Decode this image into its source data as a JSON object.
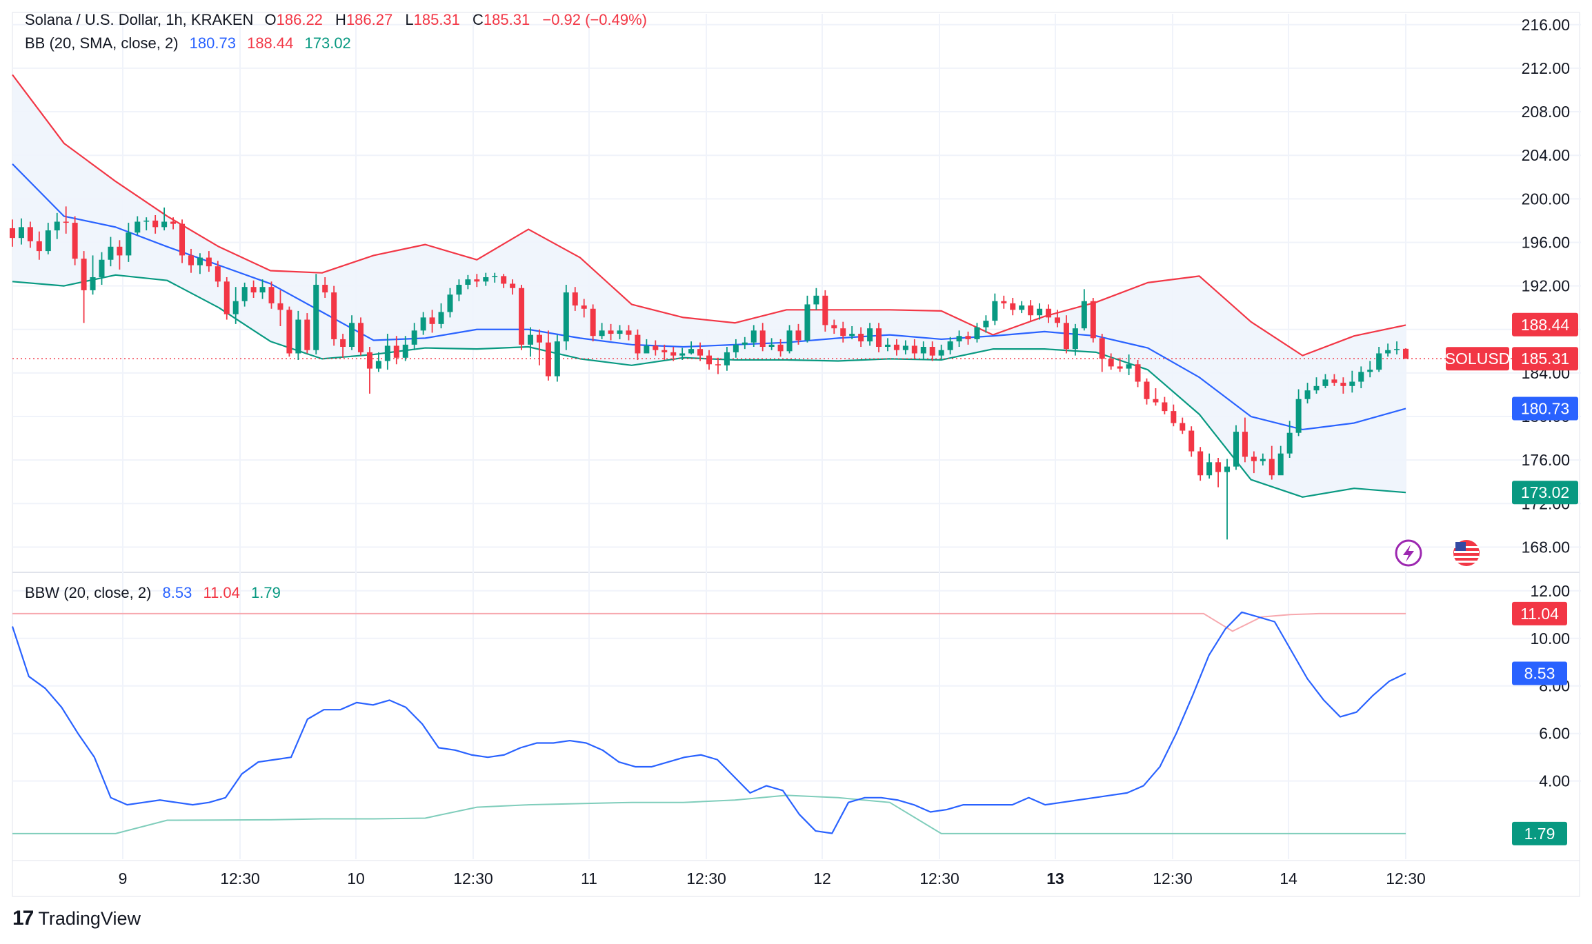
{
  "symbol": {
    "title": "Solana / U.S. Dollar, 1h, KRAKEN",
    "o_label": "O",
    "o": "186.22",
    "h_label": "H",
    "h": "186.27",
    "l_label": "L",
    "l": "185.31",
    "c_label": "C",
    "c": "185.31",
    "change": "−0.92 (−0.49%)",
    "ticker": "SOLUSD"
  },
  "bb_legend": {
    "title": "BB (20, SMA, close, 2)",
    "basis": "180.73",
    "upper": "188.44",
    "lower": "173.02"
  },
  "bbw_legend": {
    "title": "BBW (20, close, 2)",
    "value": "8.53",
    "highest": "11.04",
    "lowest": "1.79"
  },
  "footer": {
    "brand": "TradingView",
    "logo": "17"
  },
  "colors": {
    "up": "#089981",
    "down": "#F23645",
    "basis": "#2962FF",
    "upper": "#F23645",
    "lower": "#089981",
    "band_fill": "#EEF4FC",
    "grid": "#F0F3FA"
  },
  "icons": [
    "lightning-icon",
    "us-flag-icon"
  ],
  "chart_data": [
    {
      "type": "candlestick",
      "title": "Solana / U.S. Dollar, 1h, KRAKEN",
      "y_ticks": [
        168,
        172,
        176,
        180,
        184,
        188,
        192,
        196,
        200,
        204,
        208,
        212,
        216
      ],
      "ylim": [
        166,
        217
      ],
      "x_ticks": [
        "9",
        "12:30",
        "10",
        "12:30",
        "11",
        "12:30",
        "12",
        "12:30",
        "13",
        "12:30",
        "14",
        "12:30"
      ],
      "price_labels": {
        "upper": "188.44",
        "last": "185.31",
        "basis": "180.73",
        "lower": "173.02"
      },
      "candles": [
        [
          197.3,
          196.4,
          198.1,
          195.6
        ],
        [
          196.4,
          197.4,
          198.2,
          195.8
        ],
        [
          197.4,
          196.1,
          197.9,
          195.5
        ],
        [
          196.1,
          195.2,
          197.0,
          194.4
        ],
        [
          195.2,
          197.1,
          197.8,
          194.9
        ],
        [
          197.1,
          197.9,
          198.7,
          196.3
        ],
        [
          197.9,
          197.8,
          199.3,
          196.8
        ],
        [
          197.8,
          194.5,
          198.4,
          193.9
        ],
        [
          194.5,
          191.6,
          195.2,
          188.6
        ],
        [
          191.6,
          192.8,
          194.8,
          191.2
        ],
        [
          192.8,
          194.4,
          195.1,
          192.1
        ],
        [
          194.4,
          195.6,
          196.5,
          193.8
        ],
        [
          195.6,
          194.8,
          196.2,
          193.5
        ],
        [
          194.8,
          196.9,
          197.8,
          194.2
        ],
        [
          196.9,
          197.9,
          198.4,
          196.7
        ],
        [
          197.9,
          198.0,
          198.3,
          197.1
        ],
        [
          198.0,
          197.4,
          198.5,
          196.8
        ],
        [
          197.4,
          197.9,
          199.2,
          197.1
        ],
        [
          197.9,
          197.7,
          198.3,
          197.2
        ],
        [
          197.7,
          194.8,
          198.1,
          194.1
        ],
        [
          194.8,
          193.9,
          195.4,
          193.2
        ],
        [
          193.9,
          194.6,
          195.0,
          193.1
        ],
        [
          194.6,
          193.8,
          195.2,
          193.3
        ],
        [
          193.8,
          192.4,
          194.3,
          191.9
        ],
        [
          192.4,
          189.4,
          192.8,
          188.9
        ],
        [
          189.4,
          190.6,
          191.9,
          188.5
        ],
        [
          190.6,
          191.9,
          192.3,
          190.1
        ],
        [
          191.9,
          191.4,
          192.5,
          190.9
        ],
        [
          191.4,
          191.9,
          192.6,
          190.8
        ],
        [
          191.9,
          190.4,
          192.4,
          189.9
        ],
        [
          190.4,
          189.8,
          191.6,
          188.3
        ],
        [
          189.8,
          185.8,
          190.1,
          185.5
        ],
        [
          185.8,
          188.9,
          189.7,
          185.2
        ],
        [
          188.9,
          186.1,
          189.5,
          185.8
        ],
        [
          186.1,
          192.1,
          193.1,
          185.7
        ],
        [
          192.1,
          191.4,
          192.8,
          190.9
        ],
        [
          191.4,
          187.1,
          192.0,
          186.5
        ],
        [
          187.1,
          186.4,
          187.6,
          185.4
        ],
        [
          186.4,
          188.6,
          189.3,
          186.1
        ],
        [
          188.6,
          185.9,
          189.1,
          185.6
        ],
        [
          185.9,
          184.4,
          186.4,
          182.1
        ],
        [
          184.4,
          185.1,
          185.9,
          184.1
        ],
        [
          185.1,
          186.5,
          187.6,
          184.3
        ],
        [
          186.5,
          185.4,
          187.4,
          184.8
        ],
        [
          185.4,
          186.6,
          187.4,
          185.1
        ],
        [
          186.6,
          187.9,
          188.6,
          186.1
        ],
        [
          187.9,
          189.1,
          189.6,
          187.5
        ],
        [
          189.1,
          188.5,
          189.8,
          187.7
        ],
        [
          188.5,
          189.6,
          190.4,
          188.1
        ],
        [
          189.6,
          191.2,
          191.8,
          189.1
        ],
        [
          191.2,
          192.1,
          192.6,
          190.6
        ],
        [
          192.1,
          192.6,
          193.0,
          191.7
        ],
        [
          192.6,
          192.4,
          193.1,
          191.9
        ],
        [
          192.4,
          192.8,
          193.2,
          192.0
        ],
        [
          192.8,
          192.9,
          193.2,
          192.3
        ],
        [
          192.9,
          192.2,
          193.1,
          191.8
        ],
        [
          192.2,
          191.8,
          192.6,
          191.2
        ],
        [
          191.8,
          186.6,
          192.1,
          186.1
        ],
        [
          186.6,
          187.5,
          188.2,
          185.5
        ],
        [
          187.5,
          186.8,
          188.0,
          184.7
        ],
        [
          186.8,
          183.7,
          187.9,
          183.3
        ],
        [
          183.7,
          186.9,
          187.5,
          183.2
        ],
        [
          186.9,
          191.4,
          192.1,
          186.1
        ],
        [
          191.4,
          190.2,
          191.9,
          189.7
        ],
        [
          190.2,
          189.9,
          190.8,
          189.1
        ],
        [
          189.9,
          187.4,
          190.3,
          186.9
        ],
        [
          187.4,
          187.9,
          188.6,
          187.1
        ],
        [
          187.9,
          187.6,
          188.5,
          187.0
        ],
        [
          187.6,
          187.9,
          188.4,
          187.1
        ],
        [
          187.9,
          187.5,
          188.4,
          187.0
        ],
        [
          187.5,
          185.8,
          188.0,
          185.2
        ],
        [
          185.8,
          186.5,
          187.1,
          186.0
        ],
        [
          186.5,
          186.1,
          187.0,
          185.6
        ],
        [
          186.1,
          185.9,
          186.6,
          185.2
        ],
        [
          185.9,
          185.6,
          186.4,
          185.1
        ],
        [
          185.6,
          185.8,
          186.3,
          185.2
        ],
        [
          185.8,
          186.2,
          186.9,
          185.7
        ],
        [
          186.2,
          185.6,
          186.8,
          185.1
        ],
        [
          185.6,
          184.8,
          186.1,
          184.3
        ],
        [
          184.8,
          184.7,
          185.4,
          183.9
        ],
        [
          184.7,
          185.9,
          186.4,
          184.2
        ],
        [
          185.9,
          186.6,
          187.1,
          185.4
        ],
        [
          186.6,
          186.8,
          187.3,
          186.2
        ],
        [
          186.8,
          187.9,
          188.4,
          186.4
        ],
        [
          187.9,
          186.4,
          188.6,
          186.0
        ],
        [
          186.4,
          186.6,
          187.2,
          186.1
        ],
        [
          186.6,
          186.0,
          187.1,
          185.5
        ],
        [
          186.0,
          187.9,
          188.4,
          185.8
        ],
        [
          187.9,
          187.0,
          188.5,
          186.6
        ],
        [
          187.0,
          190.3,
          191.1,
          186.8
        ],
        [
          190.3,
          191.1,
          191.8,
          189.8
        ],
        [
          191.1,
          188.4,
          191.6,
          187.8
        ],
        [
          188.4,
          188.1,
          188.9,
          187.6
        ],
        [
          188.1,
          187.4,
          188.7,
          186.8
        ],
        [
          187.4,
          187.6,
          188.3,
          187.1
        ],
        [
          187.6,
          186.9,
          188.2,
          186.4
        ],
        [
          186.9,
          188.1,
          188.6,
          186.5
        ],
        [
          188.1,
          186.4,
          188.6,
          185.9
        ],
        [
          186.4,
          186.6,
          187.2,
          186.0
        ],
        [
          186.6,
          186.1,
          187.1,
          185.6
        ],
        [
          186.1,
          186.5,
          187.0,
          185.7
        ],
        [
          186.5,
          185.8,
          187.1,
          185.3
        ],
        [
          185.8,
          186.4,
          186.9,
          185.2
        ],
        [
          186.4,
          185.6,
          186.9,
          185.1
        ],
        [
          185.6,
          186.1,
          186.6,
          185.2
        ],
        [
          186.1,
          186.9,
          187.3,
          185.7
        ],
        [
          186.9,
          187.4,
          187.9,
          186.4
        ],
        [
          187.4,
          187.1,
          187.8,
          186.6
        ],
        [
          187.1,
          188.2,
          188.6,
          186.8
        ],
        [
          188.2,
          188.8,
          189.3,
          187.7
        ],
        [
          188.8,
          190.6,
          191.3,
          188.4
        ],
        [
          190.6,
          190.4,
          191.1,
          189.9
        ],
        [
          190.4,
          189.8,
          190.9,
          189.3
        ],
        [
          189.8,
          190.2,
          190.6,
          189.5
        ],
        [
          190.2,
          189.3,
          190.7,
          188.8
        ],
        [
          189.3,
          189.9,
          190.4,
          188.9
        ],
        [
          189.9,
          189.1,
          190.3,
          188.6
        ],
        [
          189.1,
          188.6,
          189.8,
          188.2
        ],
        [
          188.6,
          186.2,
          189.3,
          185.8
        ],
        [
          186.2,
          188.1,
          188.5,
          185.6
        ],
        [
          188.1,
          190.6,
          191.7,
          187.9
        ],
        [
          190.6,
          187.2,
          190.9,
          186.8
        ],
        [
          187.2,
          185.3,
          187.6,
          184.1
        ],
        [
          185.3,
          184.6,
          185.8,
          184.3
        ],
        [
          184.6,
          184.4,
          185.4,
          184.1
        ],
        [
          184.4,
          184.8,
          185.7,
          183.8
        ],
        [
          184.8,
          183.2,
          185.2,
          182.7
        ],
        [
          183.2,
          181.6,
          183.5,
          181.1
        ],
        [
          181.6,
          181.3,
          182.6,
          181.0
        ],
        [
          181.3,
          180.5,
          181.8,
          180.2
        ],
        [
          180.5,
          179.4,
          181.1,
          179.1
        ],
        [
          179.4,
          178.7,
          179.9,
          178.4
        ],
        [
          178.7,
          176.8,
          179.1,
          176.3
        ],
        [
          176.8,
          174.6,
          177.2,
          174.1
        ],
        [
          174.6,
          175.8,
          176.6,
          174.3
        ],
        [
          175.8,
          174.9,
          176.2,
          173.5
        ],
        [
          174.9,
          175.4,
          176.1,
          168.7
        ],
        [
          175.4,
          178.6,
          179.2,
          175.1
        ],
        [
          178.6,
          176.3,
          179.9,
          175.8
        ],
        [
          176.3,
          175.9,
          176.8,
          174.8
        ],
        [
          175.9,
          176.1,
          176.6,
          175.5
        ],
        [
          176.1,
          174.6,
          177.3,
          174.2
        ],
        [
          174.6,
          176.6,
          177.3,
          175.9
        ],
        [
          176.6,
          178.5,
          179.6,
          176.2
        ],
        [
          178.5,
          181.6,
          182.5,
          178.2
        ],
        [
          181.6,
          182.4,
          183.1,
          181.2
        ],
        [
          182.4,
          182.8,
          183.6,
          182.1
        ],
        [
          182.8,
          183.4,
          183.9,
          182.6
        ],
        [
          183.4,
          183.1,
          183.9,
          182.8
        ],
        [
          183.1,
          182.8,
          183.6,
          182.1
        ],
        [
          182.8,
          183.2,
          184.2,
          182.2
        ],
        [
          183.2,
          184.1,
          184.6,
          182.6
        ],
        [
          184.1,
          184.3,
          185.1,
          183.6
        ],
        [
          184.3,
          185.8,
          186.4,
          184.1
        ],
        [
          185.8,
          186.1,
          186.7,
          185.5
        ],
        [
          186.1,
          186.2,
          186.9,
          185.7
        ],
        [
          186.22,
          185.31,
          186.27,
          185.31
        ]
      ],
      "bb_upper": [
        211.4,
        205.1,
        201.6,
        198.4,
        195.6,
        193.4,
        193.2,
        194.8,
        195.8,
        194.4,
        197.2,
        194.6,
        190.3,
        189.1,
        188.6,
        189.8,
        189.8,
        189.8,
        189.7,
        187.5,
        189.2,
        190.5,
        192.3,
        192.9,
        188.7,
        185.6,
        187.4,
        188.4
      ],
      "bb_basis": [
        203.2,
        198.4,
        197.4,
        195.6,
        193.9,
        192.2,
        189.6,
        187.0,
        187.2,
        188.0,
        188.0,
        187.2,
        186.6,
        186.4,
        186.6,
        186.8,
        187.2,
        187.5,
        187.1,
        187.4,
        187.8,
        187.4,
        186.3,
        183.6,
        180.0,
        178.8,
        179.4,
        180.73
      ],
      "bb_lower": [
        192.4,
        192.0,
        193.0,
        192.5,
        190.0,
        186.9,
        185.3,
        185.7,
        186.3,
        186.2,
        186.4,
        185.3,
        184.7,
        185.4,
        185.2,
        185.2,
        185.1,
        185.3,
        185.2,
        186.2,
        186.2,
        185.9,
        184.3,
        180.2,
        174.2,
        172.6,
        173.4,
        173.02
      ]
    },
    {
      "type": "line",
      "title": "BBW (20, close, 2)",
      "y_ticks": [
        4,
        6,
        8,
        10,
        12
      ],
      "ylim": [
        0.8,
        12.4
      ],
      "price_labels": {
        "highest": "11.04",
        "value": "8.53",
        "lowest": "1.79"
      },
      "bbw": [
        10.5,
        8.4,
        7.9,
        7.1,
        6.0,
        5.0,
        3.3,
        3.0,
        3.1,
        3.2,
        3.1,
        3.0,
        3.1,
        3.3,
        4.3,
        4.8,
        4.9,
        5.0,
        6.6,
        7.0,
        7.0,
        7.3,
        7.2,
        7.4,
        7.1,
        6.4,
        5.4,
        5.3,
        5.1,
        5.0,
        5.1,
        5.4,
        5.6,
        5.6,
        5.7,
        5.6,
        5.3,
        4.8,
        4.6,
        4.6,
        4.8,
        5.0,
        5.1,
        4.9,
        4.2,
        3.5,
        3.8,
        3.6,
        2.6,
        1.9,
        1.8,
        3.1,
        3.3,
        3.3,
        3.2,
        3.0,
        2.7,
        2.8,
        3.0,
        3.0,
        3.0,
        3.0,
        3.3,
        3.0,
        3.1,
        3.2,
        3.3,
        3.4,
        3.5,
        3.8,
        4.6,
        6.0,
        7.6,
        9.3,
        10.4,
        11.1,
        10.9,
        10.7,
        9.5,
        8.3,
        7.4,
        6.7,
        6.9,
        7.6,
        8.2,
        8.53
      ],
      "highest": [
        11.04,
        11.04,
        11.04,
        11.04,
        11.04,
        11.04,
        11.04,
        10.3,
        10.9,
        11.0,
        11.04,
        11.04,
        11.04,
        11.04
      ],
      "lowest": [
        1.79,
        1.79,
        1.79,
        2.35,
        2.36,
        2.37,
        2.41,
        2.41,
        2.44,
        2.9,
        3.0,
        3.05,
        3.1,
        3.1,
        3.2,
        3.4,
        3.3,
        3.1,
        1.79,
        1.79,
        1.79,
        1.79,
        1.79,
        1.79,
        1.79,
        1.79,
        1.79,
        1.79
      ]
    }
  ]
}
